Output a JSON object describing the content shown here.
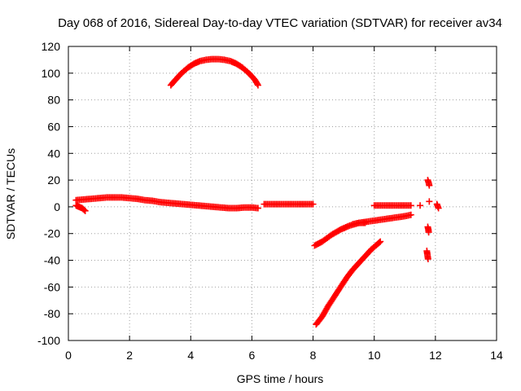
{
  "chart_data": {
    "type": "scatter",
    "title": "Day 068 of 2016, Sidereal Day-to-day VTEC variation (SDTVAR) for receiver av34",
    "xlabel": "GPS time / hours",
    "ylabel": "SDTVAR / TECUs",
    "xlim": [
      0,
      14
    ],
    "ylim": [
      -100,
      120
    ],
    "x_ticks": [
      "0",
      "2",
      "4",
      "6",
      "8",
      "10",
      "12",
      "14"
    ],
    "y_ticks": [
      "120",
      "100",
      "80",
      "60",
      "40",
      "20",
      "0",
      "-20",
      "-40",
      "-60",
      "-80",
      "-100"
    ],
    "grid": true,
    "marker": "plus",
    "color": "#ff0000",
    "segments": [
      {
        "x": [
          0.25,
          0.5,
          0.75,
          1.0,
          1.25,
          1.5,
          1.75,
          2.0,
          2.25,
          2.5,
          2.75,
          3.0,
          3.25,
          3.5,
          3.75,
          4.0,
          4.25,
          4.5,
          4.75,
          5.0,
          5.25,
          5.5,
          5.75,
          6.0,
          6.2
        ],
        "y": [
          5,
          5.5,
          6,
          6.5,
          7,
          7,
          7,
          6.5,
          6,
          5,
          4.5,
          3.5,
          3,
          2.5,
          2,
          1.5,
          1,
          0.5,
          0,
          -0.5,
          -1,
          -1,
          -0.5,
          -0.5,
          -1
        ]
      },
      {
        "x": [
          0.25,
          0.35,
          0.45,
          0.55
        ],
        "y": [
          1,
          0,
          -1,
          -3
        ]
      },
      {
        "x": [
          3.35,
          3.5,
          3.7,
          3.9,
          4.1,
          4.3,
          4.5,
          4.7,
          4.9,
          5.1,
          5.3,
          5.5,
          5.7,
          5.9,
          6.1,
          6.2
        ],
        "y": [
          91,
          95,
          100,
          104,
          107,
          109,
          110,
          110.5,
          110.5,
          110,
          109,
          107,
          104,
          100,
          95,
          91
        ]
      },
      {
        "x": [
          6.4,
          6.6,
          6.8,
          7.0,
          7.2,
          7.4,
          7.6,
          7.8,
          8.0
        ],
        "y": [
          2,
          2,
          2,
          2,
          2,
          2,
          2,
          2,
          2
        ]
      },
      {
        "x": [
          8.05,
          8.3,
          8.6,
          8.9,
          9.2,
          9.5,
          9.8,
          10.1,
          10.4,
          10.7,
          11.0,
          11.2
        ],
        "y": [
          -29,
          -26,
          -21,
          -17,
          -14,
          -12,
          -11,
          -10,
          -9,
          -8,
          -7,
          -6
        ]
      },
      {
        "x": [
          9.3,
          9.5,
          9.7
        ],
        "y": [
          -13,
          -12,
          -12
        ]
      },
      {
        "x": [
          8.1,
          8.3,
          8.5,
          8.7,
          8.9,
          9.1,
          9.3,
          9.5,
          9.7,
          9.9,
          10.1,
          10.2
        ],
        "y": [
          -88,
          -82,
          -74,
          -67,
          -60,
          -53,
          -47,
          -42,
          -37,
          -32,
          -28,
          -26
        ]
      },
      {
        "x": [
          10.0,
          10.25,
          10.5,
          10.75,
          11.0,
          11.2
        ],
        "y": [
          1,
          1,
          1,
          1,
          1,
          1
        ]
      },
      {
        "x": [
          11.5
        ],
        "y": [
          1
        ]
      },
      {
        "x": [
          11.75,
          11.78,
          11.8
        ],
        "y": [
          20,
          18,
          16
        ]
      },
      {
        "x": [
          11.8
        ],
        "y": [
          4
        ]
      },
      {
        "x": [
          11.75,
          11.77,
          11.78
        ],
        "y": [
          -15,
          -17,
          -19
        ]
      },
      {
        "x": [
          11.72,
          11.74,
          11.76
        ],
        "y": [
          -33,
          -36,
          -39
        ]
      },
      {
        "x": [
          12.05,
          12.1
        ],
        "y": [
          2,
          -1
        ]
      }
    ]
  }
}
